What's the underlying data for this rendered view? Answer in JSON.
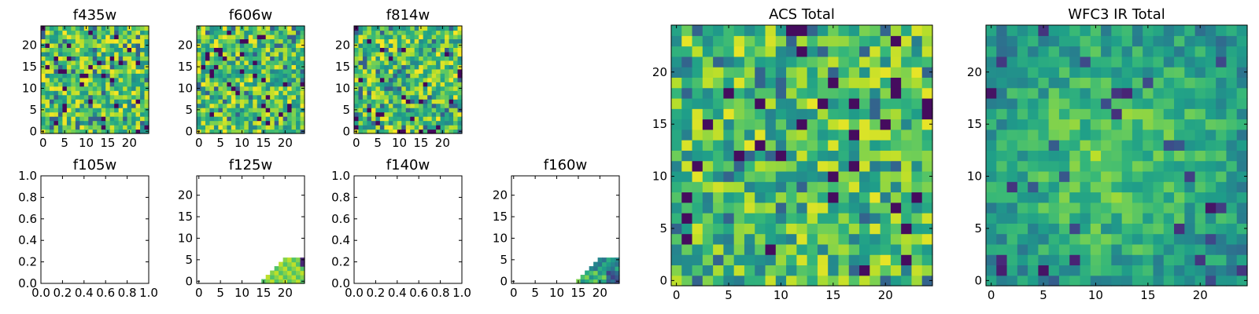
{
  "figure": {
    "colormap": "viridis",
    "colors": {
      "low": "#440154",
      "mid": "#21918c",
      "high": "#fde725"
    }
  },
  "chart_data": [
    {
      "type": "heatmap",
      "title": "f435w",
      "xlim": [
        0,
        24
      ],
      "ylim": [
        0,
        24
      ],
      "xticks": [
        "0",
        "5",
        "10",
        "15",
        "20"
      ],
      "yticks": [
        "0",
        "5",
        "10",
        "15",
        "20"
      ],
      "pattern": "noise",
      "fill": "full"
    },
    {
      "type": "heatmap",
      "title": "f606w",
      "xlim": [
        0,
        24
      ],
      "ylim": [
        0,
        24
      ],
      "xticks": [
        "0",
        "5",
        "10",
        "15",
        "20"
      ],
      "yticks": [
        "0",
        "5",
        "10",
        "15",
        "20"
      ],
      "pattern": "noise",
      "fill": "full"
    },
    {
      "type": "heatmap",
      "title": "f814w",
      "xlim": [
        0,
        24
      ],
      "ylim": [
        0,
        24
      ],
      "xticks": [
        "0",
        "5",
        "10",
        "15",
        "20"
      ],
      "yticks": [
        "0",
        "5",
        "10",
        "15",
        "20"
      ],
      "pattern": "noise",
      "fill": "full"
    },
    {
      "type": "heatmap",
      "title": "f105w",
      "xlim": [
        0,
        1
      ],
      "ylim": [
        0,
        1
      ],
      "xticks": [
        "0.0",
        "0.2",
        "0.4",
        "0.6",
        "0.8",
        "1.0"
      ],
      "yticks": [
        "0.0",
        "0.2",
        "0.4",
        "0.6",
        "0.8",
        "1.0"
      ],
      "fill": "empty"
    },
    {
      "type": "heatmap",
      "title": "f125w",
      "xlim": [
        0,
        24
      ],
      "ylim": [
        0,
        24
      ],
      "xticks": [
        "0",
        "5",
        "10",
        "15",
        "20"
      ],
      "yticks": [
        "0",
        "5",
        "10",
        "15",
        "20"
      ],
      "pattern": "corner",
      "fill": "lower-right-corner"
    },
    {
      "type": "heatmap",
      "title": "f140w",
      "xlim": [
        0,
        1
      ],
      "ylim": [
        0,
        1
      ],
      "xticks": [
        "0.0",
        "0.2",
        "0.4",
        "0.6",
        "0.8",
        "1.0"
      ],
      "yticks": [
        "0.0",
        "0.2",
        "0.4",
        "0.6",
        "0.8",
        "1.0"
      ],
      "fill": "empty"
    },
    {
      "type": "heatmap",
      "title": "f160w",
      "xlim": [
        0,
        24
      ],
      "ylim": [
        0,
        24
      ],
      "xticks": [
        "0",
        "5",
        "10",
        "15",
        "20"
      ],
      "yticks": [
        "0",
        "5",
        "10",
        "15",
        "20"
      ],
      "pattern": "corner2",
      "fill": "lower-right-corner"
    },
    {
      "type": "heatmap",
      "title": "ACS Total",
      "xlim": [
        0,
        24
      ],
      "ylim": [
        0,
        24
      ],
      "xticks": [
        "0",
        "5",
        "10",
        "15",
        "20"
      ],
      "yticks": [
        "0",
        "5",
        "10",
        "15",
        "20"
      ],
      "pattern": "total_acs",
      "fill": "full"
    },
    {
      "type": "heatmap",
      "title": "WFC3 IR Total",
      "xlim": [
        0,
        24
      ],
      "ylim": [
        0,
        24
      ],
      "xticks": [
        "0",
        "5",
        "10",
        "15",
        "20"
      ],
      "yticks": [
        "0",
        "5",
        "10",
        "15",
        "20"
      ],
      "pattern": "total_ir",
      "fill": "full"
    }
  ]
}
